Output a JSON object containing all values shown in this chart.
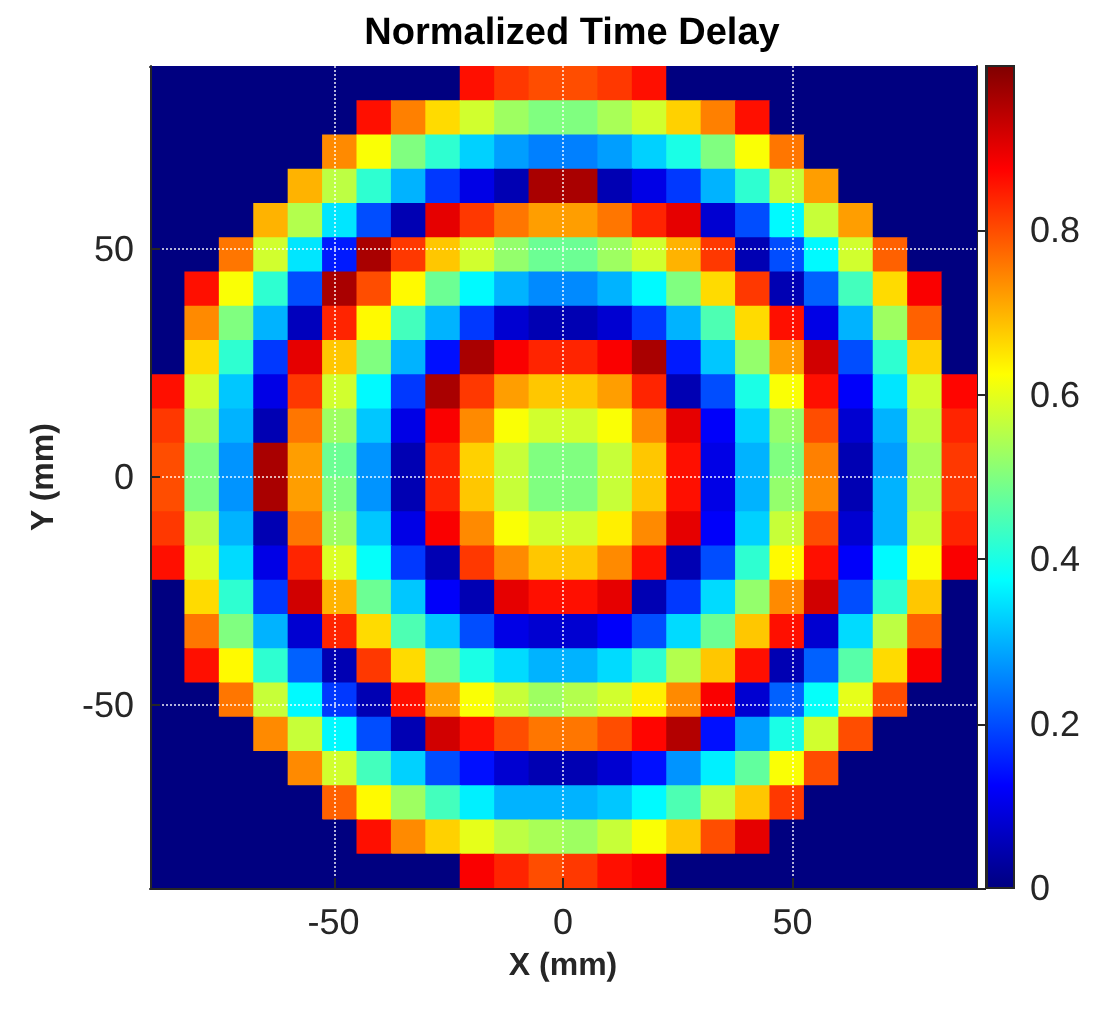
{
  "chart_data": {
    "type": "heatmap",
    "title": "Normalized Time Delay",
    "xlabel": "X (mm)",
    "ylabel": "Y (mm)",
    "x": [
      -86.25,
      -78.75,
      -71.25,
      -63.75,
      -56.25,
      -48.75,
      -41.25,
      -33.75,
      -26.25,
      -18.75,
      -11.25,
      -3.75,
      3.75,
      11.25,
      18.75,
      26.25,
      33.75,
      41.25,
      48.75,
      56.25,
      63.75,
      71.25,
      78.75,
      86.25
    ],
    "y": [
      86.25,
      78.75,
      71.25,
      63.75,
      56.25,
      48.75,
      41.25,
      33.75,
      26.25,
      18.75,
      11.25,
      3.75,
      -3.75,
      -11.25,
      -18.75,
      -26.25,
      -33.75,
      -41.25,
      -48.75,
      -56.25,
      -63.75,
      -71.25,
      -78.75,
      -86.25
    ],
    "xlim": [
      -90,
      90
    ],
    "ylim": [
      -90,
      90
    ],
    "xticks": [
      -50,
      0,
      50
    ],
    "yticks": [
      -50,
      0,
      50
    ],
    "grid": true,
    "clim": [
      0,
      1
    ],
    "cticks": [
      0,
      0.2,
      0.4,
      0.6,
      0.8
    ],
    "cells": [
      [
        0,
        0,
        0,
        0,
        0,
        0,
        0,
        0,
        0,
        0.86,
        0.82,
        0.8,
        0.8,
        0.82,
        0.86,
        0,
        0,
        0,
        0,
        0,
        0,
        0,
        0,
        0
      ],
      [
        0,
        0,
        0,
        0,
        0,
        0,
        0.86,
        0.75,
        0.66,
        0.58,
        0.53,
        0.5,
        0.5,
        0.54,
        0.58,
        0.67,
        0.75,
        0.86,
        0,
        0,
        0,
        0,
        0,
        0
      ],
      [
        0,
        0,
        0,
        0,
        0,
        0.74,
        0.62,
        0.5,
        0.42,
        0.33,
        0.28,
        0.25,
        0.25,
        0.28,
        0.33,
        0.4,
        0.5,
        0.62,
        0.76,
        0,
        0,
        0,
        0,
        0
      ],
      [
        0,
        0,
        0,
        0,
        0.7,
        0.56,
        0.42,
        0.3,
        0.18,
        0.1,
        0.05,
        0.96,
        0.96,
        0.05,
        0.1,
        0.18,
        0.3,
        0.42,
        0.57,
        0.72,
        0,
        0,
        0,
        0
      ],
      [
        0,
        0,
        0,
        0.7,
        0.55,
        0.35,
        0.2,
        0.05,
        0.9,
        0.82,
        0.76,
        0.72,
        0.72,
        0.76,
        0.84,
        0.9,
        0.08,
        0.2,
        0.37,
        0.57,
        0.72,
        0,
        0,
        0
      ],
      [
        0,
        0,
        0.76,
        0.58,
        0.35,
        0.15,
        0.96,
        0.82,
        0.68,
        0.58,
        0.52,
        0.48,
        0.48,
        0.53,
        0.58,
        0.7,
        0.82,
        0.05,
        0.2,
        0.37,
        0.58,
        0.78,
        0,
        0
      ],
      [
        0,
        0.86,
        0.62,
        0.42,
        0.2,
        0.96,
        0.8,
        0.63,
        0.48,
        0.37,
        0.3,
        0.26,
        0.26,
        0.3,
        0.37,
        0.5,
        0.66,
        0.82,
        0.05,
        0.22,
        0.44,
        0.66,
        0.88,
        0
      ],
      [
        0,
        0.74,
        0.5,
        0.3,
        0.06,
        0.84,
        0.63,
        0.44,
        0.3,
        0.18,
        0.08,
        0.05,
        0.05,
        0.08,
        0.18,
        0.3,
        0.45,
        0.66,
        0.86,
        0.1,
        0.3,
        0.53,
        0.78,
        0
      ],
      [
        0,
        0.66,
        0.42,
        0.18,
        0.9,
        0.68,
        0.5,
        0.3,
        0.14,
        0.96,
        0.88,
        0.84,
        0.84,
        0.88,
        0.96,
        0.15,
        0.32,
        0.52,
        0.72,
        0.92,
        0.2,
        0.42,
        0.67,
        0
      ],
      [
        0.86,
        0.58,
        0.32,
        0.1,
        0.82,
        0.58,
        0.37,
        0.18,
        0.96,
        0.82,
        0.72,
        0.68,
        0.68,
        0.72,
        0.84,
        0.05,
        0.2,
        0.4,
        0.62,
        0.86,
        0.12,
        0.35,
        0.58,
        0.87
      ],
      [
        0.82,
        0.54,
        0.3,
        0.05,
        0.76,
        0.53,
        0.32,
        0.1,
        0.88,
        0.74,
        0.62,
        0.58,
        0.58,
        0.62,
        0.74,
        0.9,
        0.12,
        0.33,
        0.52,
        0.8,
        0.08,
        0.3,
        0.56,
        0.84
      ],
      [
        0.8,
        0.5,
        0.27,
        0.96,
        0.72,
        0.48,
        0.27,
        0.05,
        0.84,
        0.67,
        0.57,
        0.5,
        0.5,
        0.57,
        0.68,
        0.86,
        0.1,
        0.3,
        0.5,
        0.75,
        0.05,
        0.28,
        0.54,
        0.82
      ],
      [
        0.8,
        0.5,
        0.27,
        0.96,
        0.72,
        0.5,
        0.27,
        0.05,
        0.84,
        0.68,
        0.57,
        0.5,
        0.5,
        0.57,
        0.68,
        0.86,
        0.1,
        0.3,
        0.52,
        0.74,
        0.05,
        0.3,
        0.55,
        0.82
      ],
      [
        0.82,
        0.56,
        0.3,
        0.05,
        0.76,
        0.53,
        0.32,
        0.1,
        0.88,
        0.74,
        0.62,
        0.58,
        0.58,
        0.64,
        0.74,
        0.9,
        0.12,
        0.33,
        0.57,
        0.8,
        0.08,
        0.3,
        0.57,
        0.84
      ],
      [
        0.86,
        0.59,
        0.34,
        0.1,
        0.84,
        0.59,
        0.38,
        0.18,
        0.05,
        0.82,
        0.74,
        0.68,
        0.68,
        0.74,
        0.86,
        0.05,
        0.2,
        0.42,
        0.63,
        0.86,
        0.12,
        0.37,
        0.62,
        0.88
      ],
      [
        0,
        0.66,
        0.42,
        0.18,
        0.92,
        0.7,
        0.48,
        0.32,
        0.12,
        0.05,
        0.9,
        0.86,
        0.86,
        0.9,
        0.05,
        0.18,
        0.34,
        0.52,
        0.74,
        0.92,
        0.2,
        0.42,
        0.68,
        0
      ],
      [
        0,
        0.76,
        0.5,
        0.3,
        0.08,
        0.84,
        0.66,
        0.45,
        0.32,
        0.2,
        0.1,
        0.08,
        0.08,
        0.12,
        0.2,
        0.34,
        0.48,
        0.68,
        0.86,
        0.08,
        0.34,
        0.56,
        0.78,
        0
      ],
      [
        0,
        0.86,
        0.63,
        0.42,
        0.22,
        0.05,
        0.82,
        0.66,
        0.5,
        0.4,
        0.34,
        0.3,
        0.3,
        0.34,
        0.42,
        0.55,
        0.68,
        0.86,
        0.05,
        0.22,
        0.46,
        0.66,
        0.88,
        0
      ],
      [
        0,
        0,
        0.76,
        0.57,
        0.37,
        0.18,
        0.05,
        0.86,
        0.72,
        0.62,
        0.57,
        0.53,
        0.55,
        0.58,
        0.64,
        0.74,
        0.88,
        0.08,
        0.22,
        0.38,
        0.6,
        0.8,
        0,
        0
      ],
      [
        0,
        0,
        0,
        0.74,
        0.57,
        0.37,
        0.2,
        0.05,
        0.92,
        0.86,
        0.8,
        0.76,
        0.76,
        0.8,
        0.87,
        0.95,
        0.14,
        0.28,
        0.4,
        0.58,
        0.8,
        0,
        0,
        0
      ],
      [
        0,
        0,
        0,
        0,
        0.74,
        0.58,
        0.44,
        0.33,
        0.2,
        0.14,
        0.08,
        0.05,
        0.05,
        0.08,
        0.14,
        0.27,
        0.36,
        0.47,
        0.62,
        0.8,
        0,
        0,
        0,
        0
      ],
      [
        0,
        0,
        0,
        0,
        0,
        0.78,
        0.63,
        0.53,
        0.44,
        0.36,
        0.3,
        0.3,
        0.3,
        0.32,
        0.37,
        0.45,
        0.57,
        0.68,
        0.82,
        0,
        0,
        0,
        0,
        0
      ],
      [
        0,
        0,
        0,
        0,
        0,
        0,
        0.86,
        0.74,
        0.67,
        0.6,
        0.56,
        0.54,
        0.53,
        0.57,
        0.62,
        0.68,
        0.8,
        0.9,
        0,
        0,
        0,
        0,
        0,
        0
      ],
      [
        0,
        0,
        0,
        0,
        0,
        0,
        0,
        0,
        0,
        0.88,
        0.84,
        0.8,
        0.82,
        0.86,
        0.88,
        0,
        0,
        0,
        0,
        0,
        0,
        0,
        0,
        0
      ]
    ]
  }
}
